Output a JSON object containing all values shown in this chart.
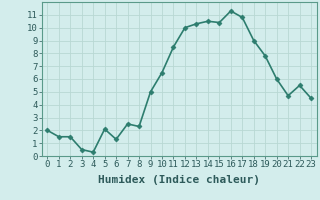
{
  "x": [
    0,
    1,
    2,
    3,
    4,
    5,
    6,
    7,
    8,
    9,
    10,
    11,
    12,
    13,
    14,
    15,
    16,
    17,
    18,
    19,
    20,
    21,
    22,
    23
  ],
  "y": [
    2.0,
    1.5,
    1.5,
    0.5,
    0.3,
    2.1,
    1.3,
    2.5,
    2.3,
    5.0,
    6.5,
    8.5,
    10.0,
    10.3,
    10.5,
    10.4,
    11.3,
    10.8,
    9.0,
    7.8,
    6.0,
    4.7,
    5.5,
    4.5
  ],
  "line_color": "#2d7d6e",
  "marker": "D",
  "markersize": 2.5,
  "bg_color": "#d3edec",
  "grid_color": "#b8d8d4",
  "xlabel": "Humidex (Indice chaleur)",
  "ylim": [
    0,
    12
  ],
  "xlim": [
    -0.5,
    23.5
  ],
  "yticks": [
    0,
    1,
    2,
    3,
    4,
    5,
    6,
    7,
    8,
    9,
    10,
    11
  ],
  "xticks": [
    0,
    1,
    2,
    3,
    4,
    5,
    6,
    7,
    8,
    9,
    10,
    11,
    12,
    13,
    14,
    15,
    16,
    17,
    18,
    19,
    20,
    21,
    22,
    23
  ],
  "tick_fontsize": 6.5,
  "xlabel_fontsize": 8,
  "linewidth": 1.2
}
